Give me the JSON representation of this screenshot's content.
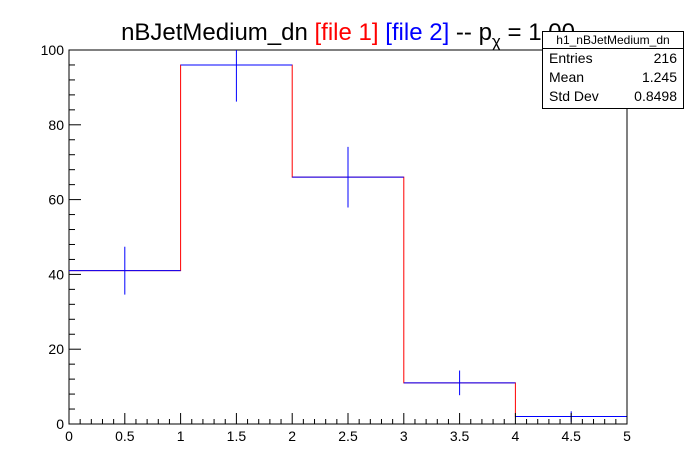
{
  "title": {
    "prefix": "nBJetMedium_dn ",
    "file1": "[file 1]",
    "file2": "[file 2]",
    "mid": " -- p",
    "sub": "χ",
    "suffix": " = 1.00"
  },
  "colors": {
    "file1": "#ff0000",
    "file2": "#0000ff",
    "axis": "#000000"
  },
  "stats": {
    "name": "h1_nBJetMedium_dn",
    "rows": [
      {
        "label": "Entries",
        "value": "216"
      },
      {
        "label": "Mean",
        "value": "1.245"
      },
      {
        "label": "Std Dev",
        "value": "0.8498"
      }
    ]
  },
  "chart_data": {
    "type": "bar",
    "style": "step-histogram",
    "xlim": [
      0,
      5
    ],
    "ylim": [
      0,
      100
    ],
    "x_ticks": [
      "0",
      "0.5",
      "1",
      "1.5",
      "2",
      "2.5",
      "3",
      "3.5",
      "4",
      "4.5",
      "5"
    ],
    "y_ticks": [
      "0",
      "20",
      "40",
      "60",
      "80",
      "100"
    ],
    "series": [
      {
        "legend": "[file 1]",
        "color": "#ff0000",
        "bin_edges": [
          0,
          1,
          2,
          3,
          4,
          5
        ],
        "values": [
          41,
          96,
          66,
          11,
          2
        ]
      },
      {
        "legend": "[file 2]",
        "color": "#0000ff",
        "x": [
          0.5,
          1.5,
          2.5,
          3.5,
          4.5
        ],
        "values": [
          41,
          96,
          66,
          11,
          2
        ],
        "errors": [
          6.4,
          9.8,
          8.1,
          3.3,
          1.4
        ],
        "bin_width": 1
      }
    ]
  }
}
